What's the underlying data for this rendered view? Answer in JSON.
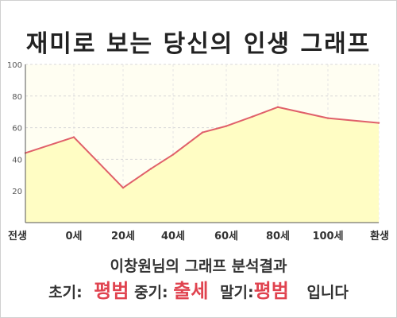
{
  "title": "재미로 보는 당신의 인생 그래프",
  "subtitle": "이창원님의 그래프 분석결과",
  "result": {
    "early_label": "초기:",
    "early_value": "평범",
    "mid_label": "중기:",
    "mid_value": "출세",
    "late_label": "말기:",
    "late_value": "평범",
    "ending": "입니다"
  },
  "colors": {
    "line": "#e0606a",
    "fill": "#fffdc4",
    "highlight": "#e0434f"
  },
  "chart_data": {
    "type": "area",
    "title": "재미로 보는 당신의 인생 그래프",
    "xlabel": "",
    "ylabel": "",
    "x_ticks": [
      "전생",
      "0세",
      "20세",
      "40세",
      "60세",
      "80세",
      "100세",
      "환생"
    ],
    "y_ticks": [
      "20",
      "40",
      "60",
      "80",
      "100"
    ],
    "ylim": [
      0,
      100
    ],
    "grid": true,
    "series": [
      {
        "points": [
          {
            "x": "전생",
            "y": 44
          },
          {
            "x": "0세",
            "y": 54
          },
          {
            "x": "20세",
            "y": 22
          },
          {
            "x": "30세",
            "y": 34
          },
          {
            "x": "40세",
            "y": 43
          },
          {
            "x": "50세",
            "y": 57
          },
          {
            "x": "60세",
            "y": 61
          },
          {
            "x": "70세",
            "y": 67
          },
          {
            "x": "80세",
            "y": 73
          },
          {
            "x": "100세",
            "y": 66
          },
          {
            "x": "환생",
            "y": 63
          }
        ]
      }
    ]
  }
}
